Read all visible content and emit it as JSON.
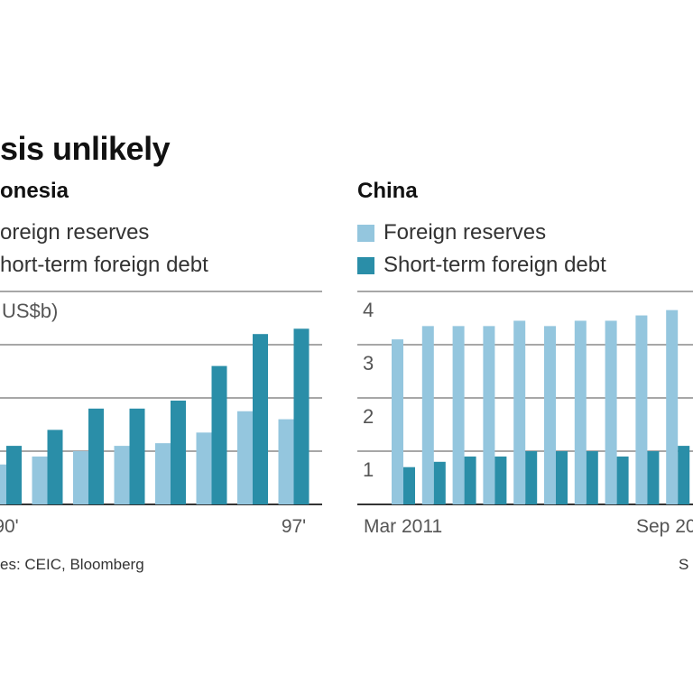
{
  "headline": "sis unlikely",
  "colors": {
    "reserves": "#94c6de",
    "debt": "#2a8ea8",
    "grid": "#8a8a8a",
    "axis": "#333333"
  },
  "source_left": "es: CEIC, Bloomberg",
  "source_right": "S",
  "chart_data": [
    {
      "type": "bar",
      "title": "onesia",
      "unit_label": "US$b)",
      "legend": [
        "oreign reserves",
        "hort-term foreign debt"
      ],
      "categories": [
        "90'",
        "",
        "",
        "",
        "",
        "",
        "",
        "97'"
      ],
      "ylim": [
        0,
        40
      ],
      "series": [
        {
          "name": "oreign reserves",
          "values": [
            7.5,
            9,
            10,
            11,
            11.5,
            13.5,
            17.5,
            16
          ]
        },
        {
          "name": "hort-term foreign debt",
          "values": [
            11,
            14,
            18,
            18,
            19.5,
            26,
            32,
            33
          ]
        }
      ]
    },
    {
      "type": "bar",
      "title": "China",
      "legend": [
        "Foreign reserves",
        "Short-term foreign debt"
      ],
      "categories": [
        "Mar 2011",
        "",
        "",
        "",
        "",
        "",
        "",
        "",
        "",
        "Sep 20"
      ],
      "yticks": [
        "1",
        "2",
        "3",
        "4"
      ],
      "ylim": [
        0,
        4
      ],
      "series": [
        {
          "name": "Foreign reserves",
          "values": [
            3.1,
            3.35,
            3.35,
            3.35,
            3.45,
            3.35,
            3.45,
            3.45,
            3.55,
            3.65
          ]
        },
        {
          "name": "Short-term foreign debt",
          "values": [
            0.7,
            0.8,
            0.9,
            0.9,
            1.0,
            1.0,
            1.0,
            0.9,
            1.0,
            1.1
          ]
        }
      ]
    }
  ]
}
